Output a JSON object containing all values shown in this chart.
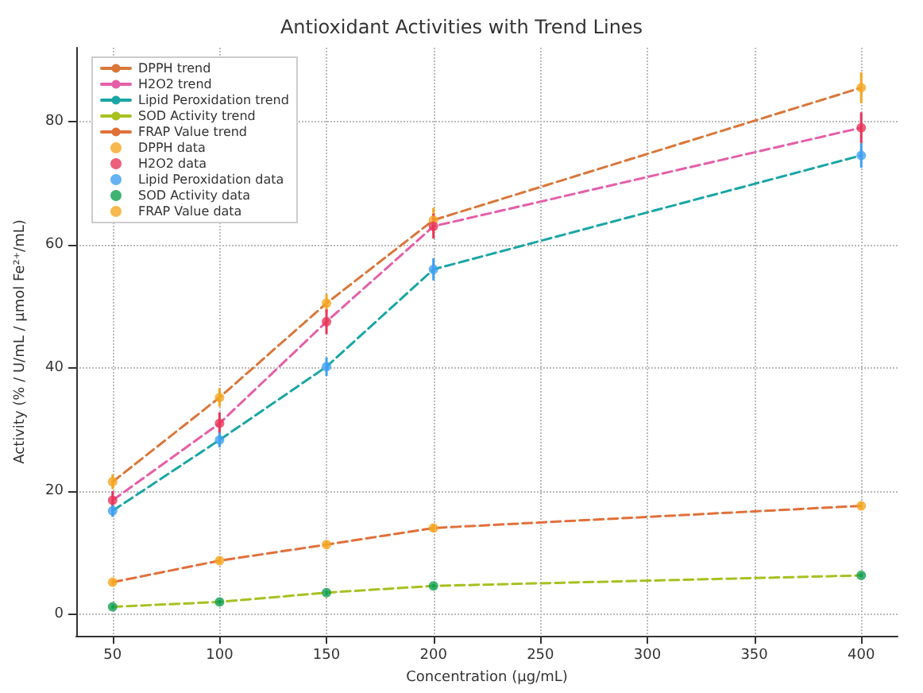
{
  "chart_data": {
    "type": "line",
    "title": "Antioxidant Activities with Trend Lines",
    "xlabel": "Concentration (μg/mL)",
    "ylabel": "Activity (% / U/mL / μmol Fe²⁺/mL)",
    "x": [
      50,
      100,
      150,
      200,
      400
    ],
    "series": [
      {
        "name": "DPPH trend",
        "color": "#d9773a",
        "marker": "none",
        "line_style": "dashed",
        "values": [
          21.5,
          35.2,
          50.5,
          64,
          85.5
        ]
      },
      {
        "name": "H2O2 trend",
        "color": "#e45fa8",
        "marker": "none",
        "line_style": "dashed",
        "values": [
          18.5,
          31,
          47.5,
          63,
          79
        ]
      },
      {
        "name": "Lipid Peroxidation trend",
        "color": "#1aa5a5",
        "marker": "none",
        "line_style": "dashed",
        "values": [
          16.8,
          28.3,
          40.2,
          56,
          74.5
        ]
      },
      {
        "name": "SOD Activity trend",
        "color": "#a8c020",
        "marker": "none",
        "line_style": "dashed",
        "values": [
          1.2,
          2,
          3.5,
          4.6,
          6.3
        ]
      },
      {
        "name": "FRAP Value trend",
        "color": "#e0703a",
        "marker": "none",
        "line_style": "dashed",
        "values": [
          5.2,
          8.7,
          11.3,
          14,
          17.6
        ]
      },
      {
        "name": "DPPH data",
        "type": "scatter",
        "color": "#f5a623",
        "marker": "circle",
        "values": [
          21.5,
          35.2,
          50.5,
          64,
          85.5
        ],
        "errors": [
          1.2,
          1.5,
          1.5,
          2,
          2.5
        ]
      },
      {
        "name": "H2O2 data",
        "type": "scatter",
        "color": "#e8365a",
        "marker": "circle",
        "values": [
          18.5,
          31,
          47.5,
          63,
          79
        ],
        "errors": [
          1.5,
          1.8,
          2,
          2,
          2.5
        ]
      },
      {
        "name": "Lipid Peroxidation data",
        "type": "scatter",
        "color": "#3fa0f0",
        "marker": "circle",
        "values": [
          16.8,
          28.3,
          40.2,
          56,
          74.5
        ],
        "errors": [
          1,
          1.2,
          1.5,
          1.8,
          2
        ]
      },
      {
        "name": "SOD Activity data",
        "type": "scatter",
        "color": "#10a050",
        "marker": "circle",
        "values": [
          1.2,
          2,
          3.5,
          4.6,
          6.3
        ],
        "errors": [
          0.3,
          0.3,
          0.3,
          0.3,
          0.3
        ]
      },
      {
        "name": "FRAP Value data",
        "type": "scatter",
        "color": "#f5a623",
        "marker": "circle",
        "values": [
          5.2,
          8.7,
          11.3,
          14,
          17.6
        ],
        "errors": [
          0.5,
          0.5,
          0.5,
          0.6,
          0.6
        ]
      }
    ],
    "xlim": [
      33,
      417
    ],
    "xticks": [
      50,
      100,
      150,
      200,
      250,
      300,
      350,
      400
    ],
    "ylim": [
      -3.5,
      92
    ],
    "yticks": [
      0,
      20,
      40,
      60,
      80
    ],
    "grid": true,
    "legend": "top left"
  }
}
